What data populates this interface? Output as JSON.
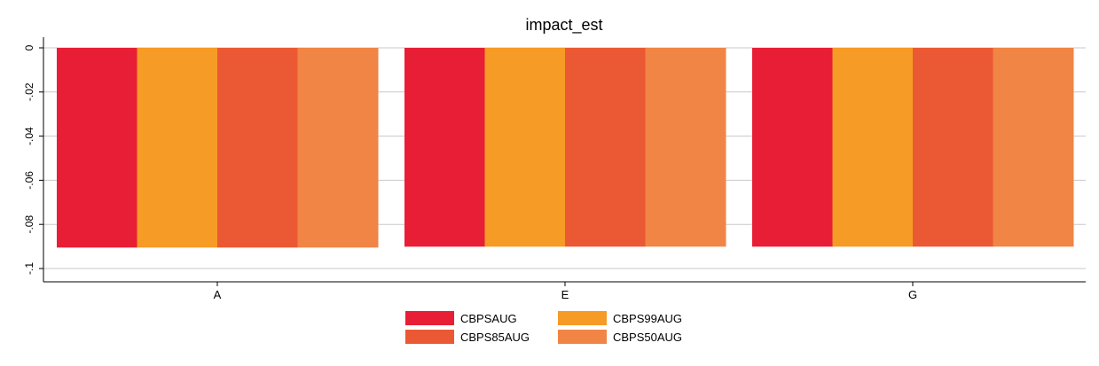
{
  "chart_data": {
    "type": "bar",
    "title": "impact_est",
    "xlabel": "",
    "ylabel": "",
    "categories": [
      "A",
      "E",
      "G"
    ],
    "ylim": [
      -0.105,
      0.0
    ],
    "yticks": [
      0,
      -0.02,
      -0.04,
      -0.06,
      -0.08,
      -0.1
    ],
    "ytick_labels": [
      "0",
      "-.02",
      "-.04",
      "-.06",
      "-.08",
      "-.1"
    ],
    "grid": true,
    "legend_position": "bottom",
    "series": [
      {
        "name": "CBPSAUG",
        "color": "#e81e36",
        "values": [
          -0.0905,
          -0.0901,
          -0.0901
        ]
      },
      {
        "name": "CBPS99AUG",
        "color": "#f59b26",
        "values": [
          -0.0905,
          -0.0901,
          -0.0901
        ]
      },
      {
        "name": "CBPS85AUG",
        "color": "#eb5934",
        "values": [
          -0.0905,
          -0.0901,
          -0.0901
        ]
      },
      {
        "name": "CBPS50AUG",
        "color": "#f08545",
        "values": [
          -0.0905,
          -0.0901,
          -0.0901
        ]
      }
    ]
  }
}
